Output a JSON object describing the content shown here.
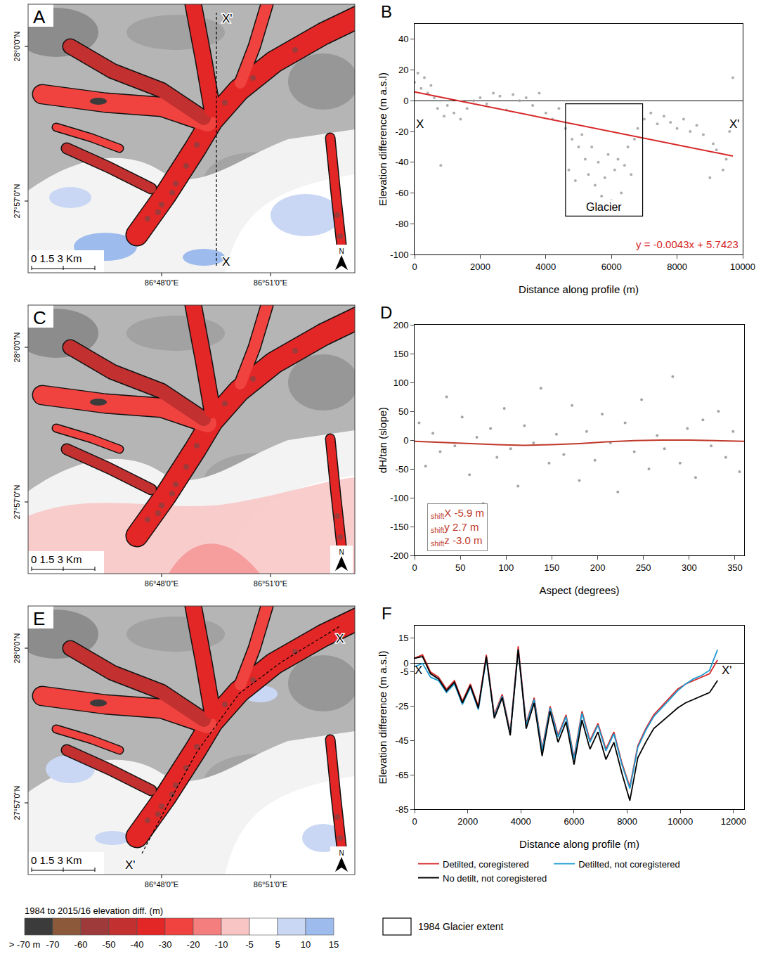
{
  "chart_data": [
    {
      "panel": "B",
      "type": "scatter",
      "x_label": "Distance along profile (m)",
      "y_label": "Elevation difference (m a.s.l)",
      "x": [
        0,
        100,
        200,
        300,
        400,
        500,
        600,
        700,
        800,
        900,
        1000,
        1200,
        1400,
        1600,
        1800,
        2000,
        2200,
        2400,
        2600,
        2800,
        3000,
        3200,
        3400,
        3600,
        3800,
        4000,
        4200,
        4400,
        4600,
        4700,
        4800,
        4900,
        5000,
        5100,
        5200,
        5300,
        5400,
        5500,
        5600,
        5700,
        5800,
        5900,
        6000,
        6100,
        6200,
        6300,
        6400,
        6500,
        6600,
        6700,
        6800,
        7000,
        7200,
        7400,
        7600,
        7800,
        8000,
        8200,
        8400,
        8600,
        8800,
        9000,
        9100,
        9200,
        9400,
        9500,
        9600,
        9700
      ],
      "values": [
        12,
        18,
        8,
        15,
        5,
        10,
        2,
        -5,
        -42,
        -10,
        -3,
        -8,
        -12,
        -5,
        0,
        2,
        -2,
        5,
        3,
        -6,
        4,
        0,
        2,
        -3,
        5,
        -8,
        -12,
        -5,
        -18,
        -45,
        -25,
        -52,
        -30,
        -22,
        -38,
        -48,
        -30,
        -55,
        -40,
        -62,
        -50,
        -35,
        -65,
        -45,
        -38,
        -60,
        -42,
        -30,
        -48,
        -25,
        -18,
        -12,
        -8,
        -15,
        -10,
        -14,
        -18,
        -12,
        -20,
        -16,
        -22,
        -50,
        -28,
        -32,
        -45,
        -38,
        -20,
        15
      ],
      "color": "#9a9a9a",
      "marker": "circle",
      "trend_line": {
        "x": [
          0,
          9700
        ],
        "values": [
          5.74,
          -35.97
        ],
        "color": "#d62728",
        "line_style": "solid",
        "label": "y = -0.0043x + 5.7423"
      },
      "box": {
        "label": "Glacier",
        "x": [
          4600,
          6950
        ],
        "y": [
          -75,
          -2
        ]
      },
      "annotations": [
        {
          "text": "X",
          "x": 150,
          "y": -15
        },
        {
          "text": "X'",
          "x": 9750,
          "y": -15
        }
      ],
      "xlim": [
        0,
        10000
      ],
      "xticks": [
        0,
        2000,
        4000,
        6000,
        8000,
        10000
      ],
      "ylim": [
        -100,
        50
      ],
      "yticks": [
        -100,
        -80,
        -60,
        -40,
        -20,
        0,
        20,
        40
      ],
      "grid": false
    },
    {
      "panel": "D",
      "type": "scatter",
      "x_label": "Aspect (degrees)",
      "y_label": "dH/tan (slope)",
      "x": [
        5,
        12,
        20,
        28,
        35,
        44,
        52,
        60,
        68,
        75,
        83,
        90,
        98,
        105,
        113,
        120,
        130,
        138,
        147,
        155,
        163,
        172,
        180,
        188,
        197,
        205,
        214,
        222,
        230,
        240,
        248,
        256,
        265,
        273,
        282,
        290,
        298,
        307,
        315,
        324,
        332,
        340,
        348,
        355
      ],
      "values": [
        30,
        -45,
        12,
        -20,
        75,
        -10,
        40,
        -60,
        5,
        -110,
        20,
        -30,
        55,
        -15,
        -80,
        25,
        -5,
        90,
        -40,
        10,
        -25,
        60,
        -70,
        15,
        -35,
        45,
        -5,
        -90,
        30,
        -20,
        70,
        -50,
        8,
        -15,
        110,
        -40,
        20,
        -65,
        35,
        -10,
        50,
        -30,
        15,
        -55
      ],
      "color": "#8c8c8c",
      "marker": "circle",
      "fit_line": {
        "x": [
          0,
          30,
          60,
          90,
          120,
          150,
          180,
          210,
          240,
          270,
          300,
          330,
          360
        ],
        "values": [
          -2,
          -4,
          -6,
          -8,
          -9,
          -8,
          -6,
          -3,
          -1,
          0,
          0,
          -1,
          -2
        ],
        "color": "#c0392b",
        "line_style": "solid"
      },
      "shift_box": {
        "color": "#c0392b",
        "lines": [
          {
            "sub": "shift",
            "label": "X",
            "text": "-5.9 m"
          },
          {
            "sub": "shift",
            "label": "y",
            "text": "2.7 m"
          },
          {
            "sub": "shift",
            "label": "z",
            "text": "-3.0 m"
          }
        ]
      },
      "xlim": [
        0,
        360
      ],
      "xticks": [
        0,
        50,
        100,
        150,
        200,
        250,
        300,
        350
      ],
      "ylim": [
        -200,
        200
      ],
      "yticks": [
        -200,
        -150,
        -100,
        -50,
        0,
        50,
        100,
        150,
        200
      ],
      "grid": false
    },
    {
      "panel": "F",
      "type": "line",
      "x_label": "Distance along profile (m)",
      "y_label": "Elevation difference (m a.s.l)",
      "x": [
        0,
        300,
        600,
        900,
        1200,
        1500,
        1800,
        2100,
        2400,
        2700,
        3000,
        3300,
        3600,
        3900,
        4200,
        4500,
        4800,
        5100,
        5400,
        5700,
        6000,
        6300,
        6600,
        6900,
        7200,
        7500,
        7800,
        8100,
        8400,
        8700,
        9000,
        9300,
        9600,
        9900,
        10200,
        10500,
        10800,
        11100,
        11400
      ],
      "series": [
        {
          "name": "Detilted, coregistered",
          "color": "#d62728",
          "line_style": "solid",
          "values": [
            3,
            5,
            -5,
            -8,
            -15,
            -10,
            -22,
            -12,
            -25,
            5,
            -30,
            -18,
            -40,
            10,
            -35,
            -20,
            -50,
            -25,
            -42,
            -30,
            -55,
            -28,
            -45,
            -35,
            -50,
            -40,
            -58,
            -72,
            -48,
            -38,
            -30,
            -25,
            -20,
            -15,
            -12,
            -10,
            -8,
            -6,
            2
          ]
        },
        {
          "name": "Detilted, not coregistered",
          "color": "#1f9bd1",
          "line_style": "solid",
          "values": [
            -2,
            0,
            -8,
            -10,
            -17,
            -12,
            -24,
            -14,
            -27,
            3,
            -31,
            -19,
            -41,
            8,
            -36,
            -21,
            -51,
            -26,
            -43,
            -31,
            -56,
            -29,
            -46,
            -36,
            -51,
            -41,
            -59,
            -73,
            -49,
            -39,
            -31,
            -26,
            -21,
            -16,
            -12,
            -9,
            -7,
            -4,
            8
          ]
        },
        {
          "name": "No detilt, not coregistered",
          "color": "#000000",
          "line_style": "solid",
          "values": [
            3,
            4,
            -6,
            -9,
            -16,
            -11,
            -23,
            -13,
            -26,
            4,
            -32,
            -20,
            -42,
            8,
            -38,
            -23,
            -54,
            -28,
            -46,
            -34,
            -59,
            -33,
            -50,
            -40,
            -56,
            -46,
            -64,
            -80,
            -55,
            -46,
            -38,
            -34,
            -30,
            -26,
            -23,
            -21,
            -19,
            -17,
            -10
          ]
        }
      ],
      "annotations": [
        {
          "text": "X",
          "x": 150,
          "y": -4
        },
        {
          "text": "X'",
          "x": 11750,
          "y": -4
        }
      ],
      "xlim": [
        0,
        12400
      ],
      "xticks": [
        0,
        2000,
        4000,
        6000,
        8000,
        10000,
        12000
      ],
      "ylim": [
        -85,
        22
      ],
      "yticks": [
        15,
        0,
        -5,
        -25,
        -45,
        -65,
        -85
      ],
      "legend": "bottom",
      "grid": false
    }
  ],
  "maps": {
    "panels": [
      {
        "label": "A",
        "profile": {
          "start": "X",
          "end": "X'"
        }
      },
      {
        "label": "C"
      },
      {
        "label": "E",
        "profile": {
          "start": "X",
          "end": "X'"
        }
      }
    ],
    "latitude_labels": [
      "28°0'0\"N",
      "27°57'0\"N"
    ],
    "longitude_labels": [
      "86°48'0\"E",
      "86°51'0\"E"
    ],
    "scale_bar": "0 1.5 3 Km",
    "north_label": "N"
  },
  "map_legend": {
    "title": "1984 to 2015/16 elevation diff. (m)",
    "colors": [
      "#3b3b3b",
      "#8c5a3a",
      "#9e3a3a",
      "#c23030",
      "#e32626",
      "#f0433f",
      "#f47d7d",
      "#f9c4c4",
      "#ffffff",
      "#c9d7f4",
      "#9dbbec"
    ],
    "labels": [
      "> -70 m",
      "-70",
      "-60",
      "-50",
      "-40",
      "-30",
      "-20",
      "-10",
      "-5",
      "5",
      "10",
      "15"
    ],
    "outline_label": "1984 Glacier extent"
  }
}
